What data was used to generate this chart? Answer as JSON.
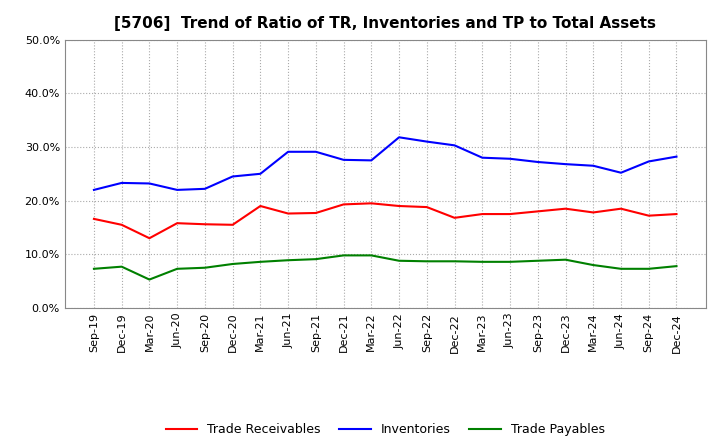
{
  "title": "[5706]  Trend of Ratio of TR, Inventories and TP to Total Assets",
  "labels": [
    "Sep-19",
    "Dec-19",
    "Mar-20",
    "Jun-20",
    "Sep-20",
    "Dec-20",
    "Mar-21",
    "Jun-21",
    "Sep-21",
    "Dec-21",
    "Mar-22",
    "Jun-22",
    "Sep-22",
    "Dec-22",
    "Mar-23",
    "Jun-23",
    "Sep-23",
    "Dec-23",
    "Mar-24",
    "Jun-24",
    "Sep-24",
    "Dec-24"
  ],
  "trade_receivables": [
    0.166,
    0.155,
    0.13,
    0.158,
    0.156,
    0.155,
    0.19,
    0.176,
    0.177,
    0.193,
    0.195,
    0.19,
    0.188,
    0.168,
    0.175,
    0.175,
    0.18,
    0.185,
    0.178,
    0.185,
    0.172,
    0.175
  ],
  "inventories": [
    0.22,
    0.233,
    0.232,
    0.22,
    0.222,
    0.245,
    0.25,
    0.291,
    0.291,
    0.276,
    0.275,
    0.318,
    0.31,
    0.303,
    0.28,
    0.278,
    0.272,
    0.268,
    0.265,
    0.252,
    0.273,
    0.282
  ],
  "trade_payables": [
    0.073,
    0.077,
    0.053,
    0.073,
    0.075,
    0.082,
    0.086,
    0.089,
    0.091,
    0.098,
    0.098,
    0.088,
    0.087,
    0.087,
    0.086,
    0.086,
    0.088,
    0.09,
    0.08,
    0.073,
    0.073,
    0.078
  ],
  "tr_color": "#ff0000",
  "inv_color": "#0000ff",
  "tp_color": "#008000",
  "background_color": "#ffffff",
  "grid_color": "#aaaaaa",
  "ylim": [
    0.0,
    0.5
  ],
  "yticks": [
    0.0,
    0.1,
    0.2,
    0.3,
    0.4,
    0.5
  ],
  "legend_labels": [
    "Trade Receivables",
    "Inventories",
    "Trade Payables"
  ],
  "title_fontsize": 11,
  "tick_fontsize": 8,
  "legend_fontsize": 9
}
